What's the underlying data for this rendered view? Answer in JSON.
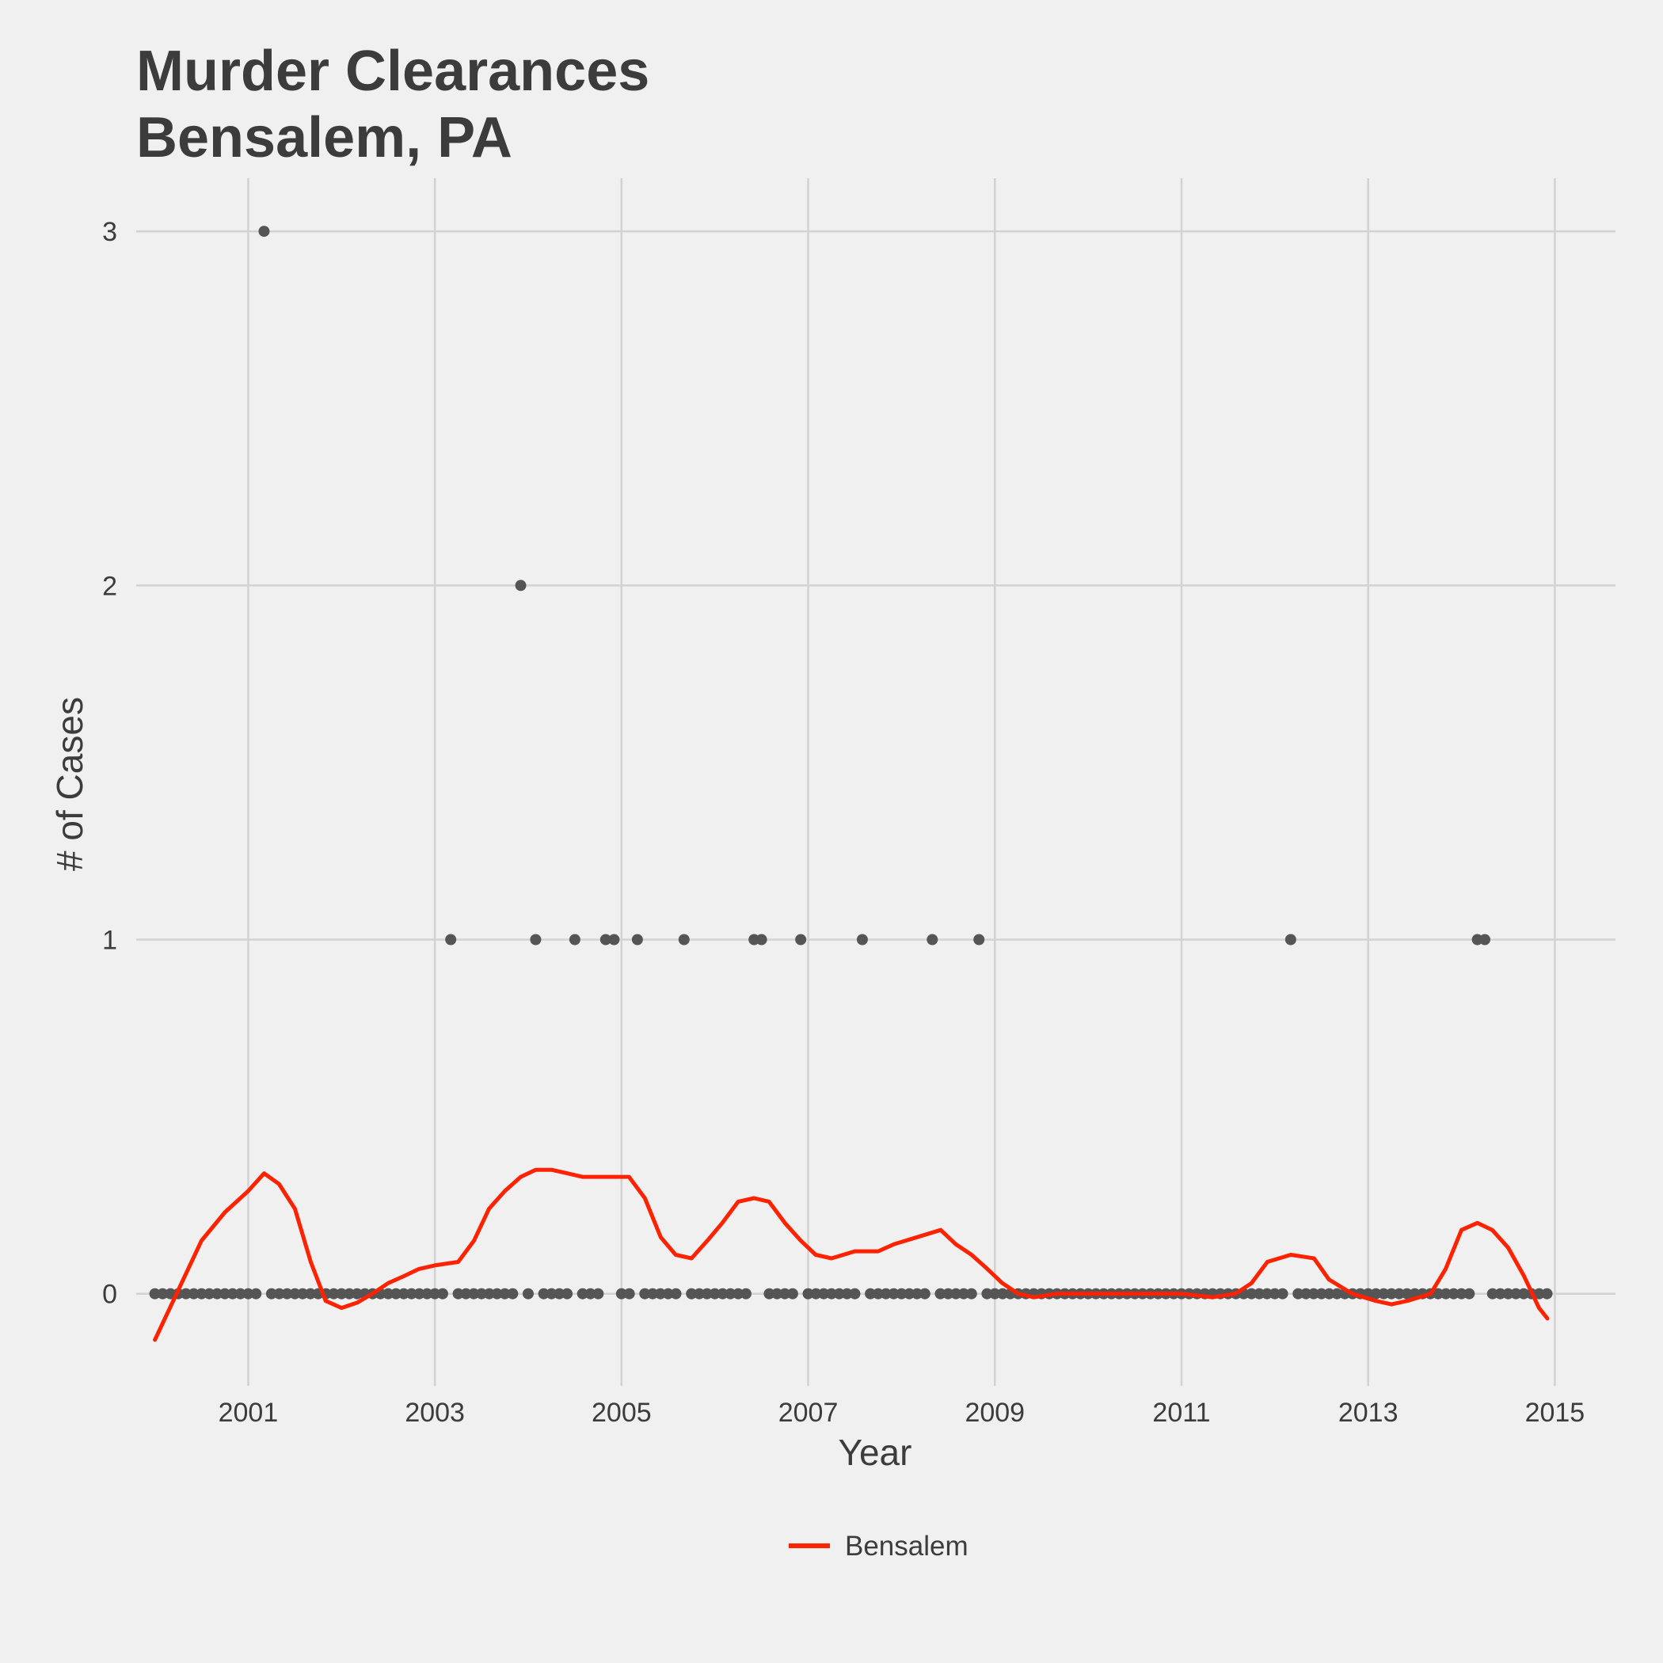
{
  "chart_data": {
    "type": "scatter",
    "title": [
      "Murder Clearances",
      "Bensalem, PA"
    ],
    "xlabel": "Year",
    "ylabel": "# of Cases",
    "xlim": [
      1999.8,
      2015.65
    ],
    "ylim": [
      -0.26,
      3.15
    ],
    "x_ticks": [
      {
        "value": 2001,
        "label": "2001"
      },
      {
        "value": 2003,
        "label": "2003"
      },
      {
        "value": 2005,
        "label": "2005"
      },
      {
        "value": 2007,
        "label": "2007"
      },
      {
        "value": 2009,
        "label": "2009"
      },
      {
        "value": 2011,
        "label": "2011"
      },
      {
        "value": 2013,
        "label": "2013"
      },
      {
        "value": 2015,
        "label": "2015"
      }
    ],
    "y_ticks": [
      {
        "value": 0,
        "label": "0"
      },
      {
        "value": 1,
        "label": "1"
      },
      {
        "value": 2,
        "label": "2"
      },
      {
        "value": 3,
        "label": "3"
      }
    ],
    "grid": true,
    "legend_position": "bottom",
    "points": {
      "color": "#555555",
      "monthly_start": 2000.0,
      "monthly_step": 0.08333,
      "monthly_count": 180,
      "nonzero": [
        {
          "x": 2001.17,
          "y": 3
        },
        {
          "x": 2003.92,
          "y": 2
        },
        {
          "x": 2003.17,
          "y": 1
        },
        {
          "x": 2004.08,
          "y": 1
        },
        {
          "x": 2004.5,
          "y": 1
        },
        {
          "x": 2004.83,
          "y": 1
        },
        {
          "x": 2004.92,
          "y": 1
        },
        {
          "x": 2005.17,
          "y": 1
        },
        {
          "x": 2005.67,
          "y": 1
        },
        {
          "x": 2006.42,
          "y": 1
        },
        {
          "x": 2006.5,
          "y": 1
        },
        {
          "x": 2006.92,
          "y": 1
        },
        {
          "x": 2007.58,
          "y": 1
        },
        {
          "x": 2008.33,
          "y": 1
        },
        {
          "x": 2008.83,
          "y": 1
        },
        {
          "x": 2012.17,
          "y": 1
        },
        {
          "x": 2014.17,
          "y": 1
        },
        {
          "x": 2014.25,
          "y": 1
        }
      ]
    },
    "series": [
      {
        "name": "Bensalem",
        "color": "#ff2200",
        "x": [
          2000.0,
          2000.5,
          2000.75,
          2001.0,
          2001.17,
          2001.33,
          2001.5,
          2001.67,
          2001.83,
          2002.0,
          2002.17,
          2002.33,
          2002.5,
          2002.67,
          2002.83,
          2003.0,
          2003.25,
          2003.42,
          2003.58,
          2003.75,
          2003.92,
          2004.08,
          2004.25,
          2004.42,
          2004.58,
          2004.75,
          2004.92,
          2005.08,
          2005.25,
          2005.42,
          2005.58,
          2005.75,
          2005.92,
          2006.08,
          2006.25,
          2006.42,
          2006.58,
          2006.75,
          2006.92,
          2007.08,
          2007.25,
          2007.5,
          2007.75,
          2007.92,
          2008.17,
          2008.42,
          2008.58,
          2008.75,
          2008.92,
          2009.08,
          2009.25,
          2009.42,
          2009.67,
          2010.0,
          2010.5,
          2011.0,
          2011.33,
          2011.58,
          2011.75,
          2011.92,
          2012.17,
          2012.42,
          2012.58,
          2012.83,
          2013.08,
          2013.25,
          2013.42,
          2013.67,
          2013.83,
          2014.0,
          2014.17,
          2014.33,
          2014.5,
          2014.67,
          2014.83,
          2014.92
        ],
        "y": [
          -0.13,
          0.15,
          0.23,
          0.29,
          0.34,
          0.31,
          0.24,
          0.09,
          -0.02,
          -0.04,
          -0.025,
          0.0,
          0.03,
          0.05,
          0.07,
          0.08,
          0.09,
          0.15,
          0.24,
          0.29,
          0.33,
          0.35,
          0.35,
          0.34,
          0.33,
          0.33,
          0.33,
          0.33,
          0.27,
          0.16,
          0.11,
          0.1,
          0.15,
          0.2,
          0.26,
          0.27,
          0.26,
          0.2,
          0.15,
          0.11,
          0.1,
          0.12,
          0.12,
          0.14,
          0.16,
          0.18,
          0.14,
          0.11,
          0.07,
          0.03,
          0.0,
          -0.01,
          0.0,
          0.0,
          0.0,
          0.0,
          -0.01,
          0.0,
          0.03,
          0.09,
          0.11,
          0.1,
          0.04,
          0.0,
          -0.02,
          -0.03,
          -0.02,
          0.0,
          0.07,
          0.18,
          0.2,
          0.18,
          0.13,
          0.05,
          -0.04,
          -0.07
        ]
      }
    ]
  }
}
